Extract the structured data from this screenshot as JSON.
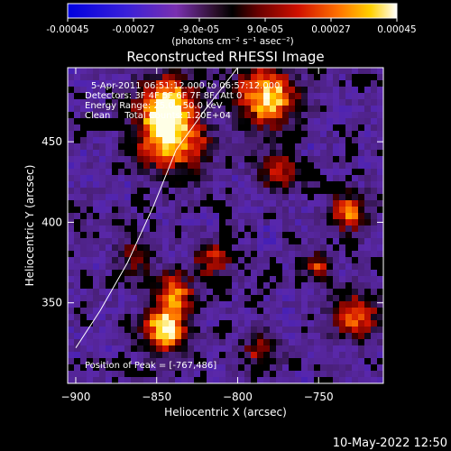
{
  "colorbar": {
    "tick_labels": [
      "-0.00045",
      "-0.00027",
      "-9.0e-05",
      "9.0e-05",
      "0.00027",
      "0.00045"
    ],
    "tick_values": [
      -0.00045,
      -0.00027,
      -9e-05,
      9e-05,
      0.00027,
      0.00045
    ],
    "range": [
      -0.00045,
      0.00045
    ],
    "unit_label": "(photons cm⁻² s⁻¹ asec⁻²)",
    "colormap": "rhessi-blue-purple-red-yellow-white"
  },
  "title": "Reconstructed RHESSI Image",
  "info": {
    "time_range": "5-Apr-2011 06:51:12.000 to 06:57:12.000",
    "detectors": "Detectors: 3F 4F 5F 6F 7F 8F, Att 0",
    "energy": "Energy Range: 25.0 - 50.0 keV",
    "clean": "Clean     Total Counts: 1.20E+04"
  },
  "peak_label": "Position of Peak = [-767,486]",
  "axes": {
    "xlabel": "Heliocentric X (arcsec)",
    "ylabel": "Heliocentric Y (arcsec)",
    "xlim": [
      -905,
      -710
    ],
    "ylim": [
      300,
      496
    ],
    "x_ticks": [
      -900,
      -850,
      -800,
      -750
    ],
    "x_tick_labels": [
      "−900",
      "−850",
      "−800",
      "−750"
    ],
    "y_ticks": [
      350,
      400,
      450
    ],
    "y_tick_labels": [
      "350",
      "400",
      "450"
    ]
  },
  "limb": [
    [
      -900,
      322
    ],
    [
      -885,
      345
    ],
    [
      -868,
      375
    ],
    [
      -852,
      410
    ],
    [
      -838,
      445
    ],
    [
      -820,
      470
    ],
    [
      -800,
      496
    ]
  ],
  "footer_timestamp": "10-May-2022 12:50"
}
